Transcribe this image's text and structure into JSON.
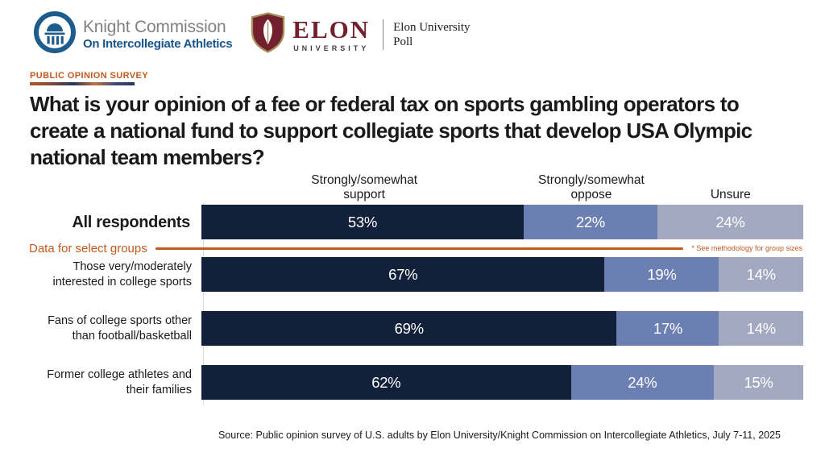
{
  "header": {
    "knight": {
      "line1": "Knight Commission",
      "line2": "On Intercollegiate Athletics"
    },
    "elon": {
      "wordmark": "ELON",
      "wordmark_sub": "UNIVERSITY",
      "poll_line1": "Elon University",
      "poll_line2": "Poll"
    }
  },
  "eyebrow": "PUBLIC OPINION SURVEY",
  "title_lines": [
    "What is your opinion of a fee or federal tax on sports gambling operators to",
    "create a national fund to support collegiate sports that develop USA Olympic",
    "national team members?"
  ],
  "divider": {
    "label": "Data for select groups",
    "note": "* See methodology for group sizes"
  },
  "source": "Source: Public opinion survey of U.S. adults by Elon University/Knight Commission on Intercollegiate Athletics, July 7-11, 2025",
  "colors": {
    "support": "#13203A",
    "oppose": "#6C7FB3",
    "unsure": "#A2A9C0",
    "accent_orange": "#C25A1E",
    "knight_blue": "#1D5C8D",
    "elon_maroon": "#73202E",
    "elon_gold": "#A6905C"
  },
  "chart_data": {
    "type": "bar",
    "stacked": true,
    "orientation": "horizontal",
    "value_suffix": "%",
    "legend_position": "top",
    "categories": [
      "All respondents",
      "Those very/moderately interested in college sports",
      "Fans of college sports other than football/basketball",
      "Former college athletes and their families"
    ],
    "series": [
      {
        "name": "Strongly/somewhat support",
        "color": "#13203A",
        "values": [
          53,
          67,
          69,
          62
        ]
      },
      {
        "name": "Strongly/somewhat oppose",
        "color": "#6C7FB3",
        "values": [
          22,
          19,
          17,
          24
        ]
      },
      {
        "name": "Unsure",
        "color": "#A2A9C0",
        "values": [
          24,
          14,
          14,
          15
        ]
      }
    ]
  }
}
